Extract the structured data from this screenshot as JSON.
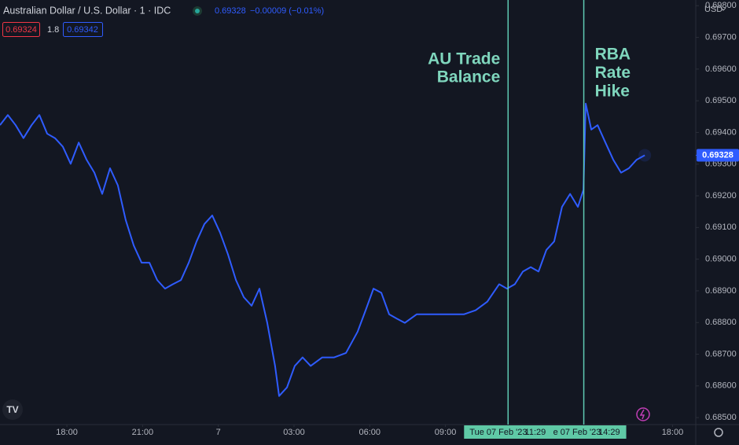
{
  "chart_data": {
    "type": "line",
    "title": "Australian Dollar / U.S. Dollar · 1 · IDC",
    "header_price": "0.69328",
    "header_change": "−0.00009 (−0.01%)",
    "bid": "0.69324",
    "spread": "1.8",
    "ask": "0.69342",
    "currency": "USD",
    "grid": false,
    "xlim": [
      15.35,
      42.92
    ],
    "ylim": [
      0.68478,
      0.69818
    ],
    "xticks": [
      {
        "value": 18,
        "label": "18:00"
      },
      {
        "value": 21,
        "label": "21:00"
      },
      {
        "value": 24,
        "label": "7"
      },
      {
        "value": 27,
        "label": "03:00"
      },
      {
        "value": 30,
        "label": "06:00"
      },
      {
        "value": 33,
        "label": "09:00"
      },
      {
        "value": 42,
        "label": "18:00"
      }
    ],
    "yticks": [
      {
        "value": 0.685,
        "label": "0.68500"
      },
      {
        "value": 0.686,
        "label": "0.68600"
      },
      {
        "value": 0.687,
        "label": "0.68700"
      },
      {
        "value": 0.688,
        "label": "0.68800"
      },
      {
        "value": 0.689,
        "label": "0.68900"
      },
      {
        "value": 0.69,
        "label": "0.69000"
      },
      {
        "value": 0.691,
        "label": "0.69100"
      },
      {
        "value": 0.692,
        "label": "0.69200"
      },
      {
        "value": 0.693,
        "label": "0.69300"
      },
      {
        "value": 0.694,
        "label": "0.69400"
      },
      {
        "value": 0.695,
        "label": "0.69500"
      },
      {
        "value": 0.696,
        "label": "0.69600"
      },
      {
        "value": 0.697,
        "label": "0.69700"
      },
      {
        "value": 0.698,
        "label": "0.69800"
      }
    ],
    "events": [
      {
        "x": 35.483,
        "label": [
          "AU Trade",
          "Balance"
        ],
        "date": "Tue 07 Feb '23",
        "time": "11:29"
      },
      {
        "x": 38.483,
        "label": [
          "RBA",
          "Rate",
          "Hike"
        ],
        "date": "e 07 Feb '23",
        "time": "14:29"
      }
    ],
    "series": [
      {
        "name": "AUD/USD",
        "color": "#2f5cff",
        "x": [
          15.35,
          15.66,
          15.97,
          16.28,
          16.6,
          16.91,
          17.22,
          17.53,
          17.84,
          18.15,
          18.47,
          18.78,
          19.09,
          19.4,
          19.71,
          20.02,
          20.33,
          20.65,
          20.96,
          21.27,
          21.58,
          21.89,
          22.2,
          22.52,
          22.83,
          23.14,
          23.45,
          23.76,
          24.07,
          24.38,
          24.7,
          25.01,
          25.32,
          25.63,
          25.94,
          26.25,
          26.41,
          26.72,
          27.03,
          27.34,
          27.66,
          28.12,
          28.59,
          29.06,
          29.52,
          29.84,
          30.15,
          30.46,
          30.77,
          31.08,
          31.39,
          31.86,
          32.33,
          32.8,
          33.26,
          33.73,
          34.2,
          34.66,
          35.13,
          35.44,
          35.75,
          36.07,
          36.38,
          36.69,
          37.0,
          37.31,
          37.62,
          37.94,
          38.25,
          38.47,
          38.56,
          38.78,
          39.03,
          39.34,
          39.65,
          39.96,
          40.27,
          40.58,
          40.9
        ],
        "values": [
          0.69423,
          0.69455,
          0.69423,
          0.69382,
          0.69423,
          0.69455,
          0.69396,
          0.69382,
          0.69355,
          0.69301,
          0.69368,
          0.69314,
          0.69273,
          0.69206,
          0.69287,
          0.69233,
          0.69124,
          0.69043,
          0.68989,
          0.68989,
          0.68934,
          0.68907,
          0.68921,
          0.68934,
          0.68989,
          0.69056,
          0.69111,
          0.69138,
          0.69084,
          0.69016,
          0.68934,
          0.6888,
          0.68853,
          0.68907,
          0.68799,
          0.68663,
          0.68568,
          0.68595,
          0.68663,
          0.6869,
          0.68663,
          0.6869,
          0.6869,
          0.68704,
          0.68771,
          0.68839,
          0.68907,
          0.68894,
          0.68826,
          0.68812,
          0.68799,
          0.68826,
          0.68826,
          0.68826,
          0.68826,
          0.68826,
          0.68839,
          0.68866,
          0.68921,
          0.68907,
          0.68921,
          0.68961,
          0.68975,
          0.68961,
          0.69029,
          0.69056,
          0.69165,
          0.69206,
          0.69165,
          0.69219,
          0.69491,
          0.69409,
          0.69423,
          0.69368,
          0.69314,
          0.69273,
          0.69287,
          0.69314,
          0.69328
        ]
      }
    ]
  }
}
